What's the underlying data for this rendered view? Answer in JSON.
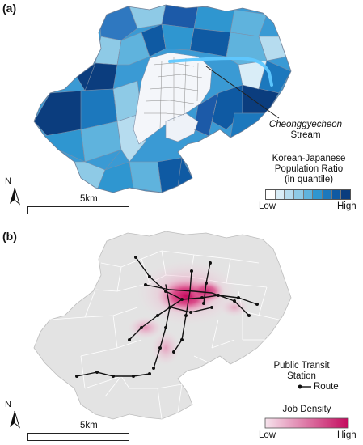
{
  "panel_a": {
    "label": "(a)",
    "annotation_line1": "Cheonggyecheon",
    "annotation_line2": "Stream",
    "legend_title_line1": "Korean-Japanese",
    "legend_title_line2": "Population Ratio",
    "legend_title_line3": "(in quantile)",
    "legend_low": "Low",
    "legend_high": "High",
    "legend_colors": [
      "#ffffff",
      "#d9edf7",
      "#b6dcef",
      "#8ecae6",
      "#5fb3dd",
      "#2f96d0",
      "#1c78bd",
      "#0f5aa3",
      "#0b3d7e"
    ],
    "north": "N",
    "scale_label": "5km",
    "stream_color": "#5fc8ff"
  },
  "panel_b": {
    "label": "(b)",
    "transit_label_line1": "Public Transit",
    "transit_label_line2": "Station",
    "route_label": "Route",
    "legend_title": "Job Density",
    "legend_low": "Low",
    "legend_high": "High",
    "legend_gradient_start": "#f6e3ec",
    "legend_gradient_end": "#c40a5e",
    "north": "N",
    "scale_label": "5km",
    "base_fill": "#e3e3e3"
  }
}
